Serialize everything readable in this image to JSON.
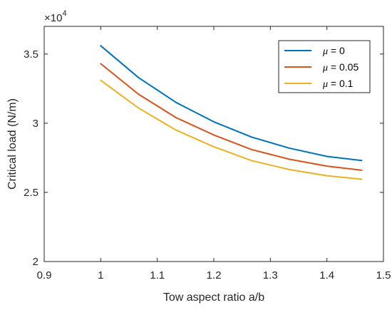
{
  "chart_data": {
    "type": "line",
    "xlabel": "Tow aspect ratio a/b",
    "ylabel": "Critical load (N/m)",
    "y_multiplier": {
      "base": "×10",
      "exponent": "4"
    },
    "xlim": [
      0.9,
      1.5
    ],
    "ylim": [
      2,
      3.7
    ],
    "x_ticks": [
      0.9,
      1.0,
      1.1,
      1.2,
      1.3,
      1.4,
      1.5
    ],
    "x_tick_labels": [
      "0.9",
      "1",
      "1.1",
      "1.2",
      "1.3",
      "1.4",
      "1.5"
    ],
    "y_ticks": [
      2,
      2.5,
      3,
      3.5
    ],
    "y_tick_labels": [
      "2",
      "2.5",
      "3",
      "3.5"
    ],
    "grid": false,
    "legend_position": "top-right",
    "x": [
      1.0,
      1.0667,
      1.1333,
      1.2,
      1.2667,
      1.3333,
      1.4,
      1.4615
    ],
    "series": [
      {
        "name": "μ = 0",
        "legend_symbol": "μ",
        "legend_text": " = 0",
        "color": "#0072BD",
        "values": [
          3.56,
          3.33,
          3.15,
          3.01,
          2.9,
          2.82,
          2.76,
          2.73
        ]
      },
      {
        "name": "μ = 0.05",
        "legend_symbol": "μ",
        "legend_text": " = 0.05",
        "color": "#D95319",
        "values": [
          3.43,
          3.21,
          3.04,
          2.915,
          2.81,
          2.74,
          2.69,
          2.66
        ]
      },
      {
        "name": "μ = 0.1",
        "legend_symbol": "μ",
        "legend_text": " = 0.1",
        "color": "#EDB120",
        "values": [
          3.31,
          3.11,
          2.95,
          2.83,
          2.73,
          2.665,
          2.62,
          2.595
        ]
      }
    ]
  }
}
